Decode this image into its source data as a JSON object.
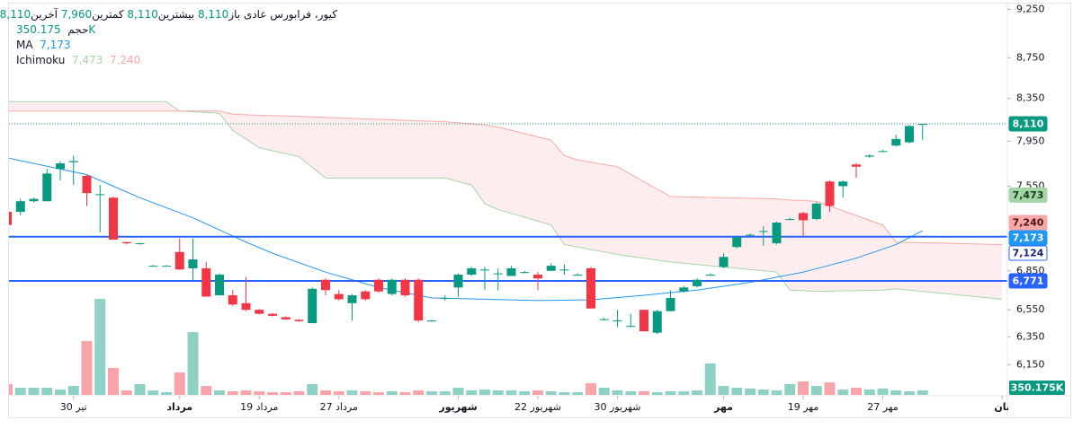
{
  "chart_data": {
    "type": "candlestick",
    "log_scale": true,
    "header": {
      "symbol": "کیور، فرابورس عادی",
      "fields": [
        {
          "name": "باز",
          "value": 8110,
          "value_label": "8,110"
        },
        {
          "name": "بیشترین",
          "value": 8110,
          "value_label": "8,110"
        },
        {
          "name": "کمترین",
          "value": 7960,
          "value_label": "7,960"
        },
        {
          "name": "آخرین",
          "value": 8110,
          "value_label": "8,110"
        }
      ],
      "volume": {
        "name": "حجم",
        "value": 350.175,
        "value_label": "350.175K"
      },
      "ma": {
        "name": "MA",
        "value": 7173,
        "value_label": "7,173"
      },
      "ichimoku": {
        "name": "Ichimoku",
        "values": [
          7473,
          7240
        ],
        "value_labels": [
          "7,473",
          "7,240"
        ]
      }
    },
    "up_color": "#089981",
    "down_color": "#f23645",
    "candles": {
      "open": [
        7330,
        7330,
        7420,
        7420,
        7700,
        7760,
        7640,
        7480,
        7450,
        7080,
        7070,
        6890,
        6890,
        7000,
        6870,
        6870,
        6660,
        6660,
        6600,
        6550,
        6520,
        6495,
        6475,
        6450,
        6780,
        6670,
        6600,
        6690,
        6780,
        6670,
        6780,
        6780,
        6465,
        6640,
        6720,
        6820,
        6860,
        6830,
        6810,
        6840,
        6820,
        6850,
        6860,
        6820,
        6870,
        6480,
        6470,
        6430,
        6550,
        6380,
        6540,
        6690,
        6730,
        6820,
        6880,
        7040,
        7140,
        7170,
        7070,
        7270,
        7320,
        7270,
        7590,
        7550,
        7740,
        7810,
        7860,
        7910,
        7940,
        8110
      ],
      "high": [
        7340,
        7440,
        7450,
        7700,
        7770,
        7820,
        7650,
        7560,
        7460,
        7080,
        7075,
        6895,
        6895,
        7110,
        7110,
        6920,
        6830,
        6700,
        6800,
        6555,
        6525,
        6500,
        6480,
        6720,
        6790,
        6700,
        6670,
        6700,
        6790,
        6790,
        6790,
        6790,
        6475,
        6660,
        6830,
        6880,
        6880,
        6870,
        6890,
        6850,
        6840,
        6910,
        6900,
        6830,
        6880,
        6490,
        6550,
        6520,
        6550,
        6550,
        6700,
        6730,
        6790,
        6830,
        6990,
        7130,
        7150,
        7210,
        7250,
        7280,
        7330,
        7410,
        7600,
        7600,
        7750,
        7830,
        7870,
        8010,
        8100,
        8110
      ],
      "low": [
        7200,
        7300,
        7410,
        7420,
        7600,
        7560,
        7380,
        7160,
        7100,
        7060,
        7060,
        6885,
        6885,
        6860,
        6780,
        6650,
        6660,
        6580,
        6540,
        6515,
        6500,
        6475,
        6460,
        6450,
        6660,
        6620,
        6470,
        6620,
        6680,
        6660,
        6650,
        6460,
        6460,
        6620,
        6650,
        6810,
        6700,
        6700,
        6810,
        6830,
        6700,
        6850,
        6820,
        6810,
        6560,
        6470,
        6420,
        6420,
        6390,
        6370,
        6540,
        6680,
        6720,
        6810,
        6870,
        7030,
        7130,
        7050,
        7060,
        7260,
        7130,
        7260,
        7330,
        7450,
        7620,
        7800,
        7850,
        7900,
        7930,
        7960
      ],
      "close": [
        7220,
        7420,
        7440,
        7660,
        7750,
        7770,
        7490,
        7480,
        7100,
        7070,
        7070,
        6890,
        6890,
        6860,
        6940,
        6650,
        6820,
        6590,
        6550,
        6520,
        6505,
        6478,
        6465,
        6710,
        6700,
        6630,
        6660,
        6630,
        6690,
        6780,
        6660,
        6470,
        6470,
        6640,
        6820,
        6870,
        6860,
        6830,
        6870,
        6840,
        6790,
        6890,
        6860,
        6820,
        6560,
        6480,
        6470,
        6430,
        6390,
        6540,
        6640,
        6720,
        6780,
        6820,
        6960,
        7120,
        7140,
        7170,
        7240,
        7270,
        7260,
        7400,
        7380,
        7590,
        7720,
        7820,
        7860,
        7970,
        8090,
        8110
      ]
    },
    "volume": {
      "values": [
        840,
        560,
        560,
        560,
        420,
        700,
        4200,
        7490,
        2100,
        350,
        840,
        350,
        210,
        1750,
        4900,
        700,
        350,
        280,
        350,
        280,
        210,
        210,
        280,
        840,
        350,
        280,
        350,
        280,
        210,
        280,
        210,
        350,
        280,
        280,
        560,
        350,
        420,
        350,
        350,
        280,
        350,
        280,
        210,
        210,
        910,
        560,
        350,
        280,
        280,
        210,
        280,
        280,
        350,
        2450,
        700,
        560,
        490,
        420,
        350,
        840,
        1050,
        700,
        980,
        420,
        560,
        420,
        490,
        350,
        280,
        350.175
      ],
      "vlim": [
        0,
        7700
      ],
      "last_label": "350.175K"
    },
    "ylim": [
      5940,
      9350
    ],
    "yticks": [
      {
        "value": 9250,
        "label": "9,250"
      },
      {
        "value": 8750,
        "label": "8,750"
      },
      {
        "value": 8350,
        "label": "8,350"
      },
      {
        "value": 7950,
        "label": "7,950"
      },
      {
        "value": 7550,
        "label": "7,550"
      },
      {
        "value": 6850,
        "label": "6,850"
      },
      {
        "value": 6550,
        "label": "6,550"
      },
      {
        "value": 6350,
        "label": "6,350"
      },
      {
        "value": 6150,
        "label": "6,150"
      }
    ],
    "xticks": [
      {
        "value": 5,
        "label": "30 تیر"
      },
      {
        "value": 13,
        "label": "مرداد"
      },
      {
        "value": 19,
        "label": "19 مرداد"
      },
      {
        "value": 25,
        "label": "27 مرداد"
      },
      {
        "value": 34,
        "label": "شهریور"
      },
      {
        "value": 40,
        "label": "22 شهریور"
      },
      {
        "value": 46,
        "label": "30 شهریور"
      },
      {
        "value": 54,
        "label": "مهر"
      },
      {
        "value": 60,
        "label": "19 مهر"
      },
      {
        "value": 66,
        "label": "27 مهر"
      },
      {
        "value": 75,
        "label": "بان"
      }
    ],
    "ma": {
      "color": "#2196f3",
      "x": [
        0,
        6,
        10,
        14,
        18,
        20,
        24,
        28,
        32,
        36,
        40,
        44,
        48,
        52,
        56,
        60,
        64,
        67,
        69
      ],
      "values": [
        7800,
        7650,
        7450,
        7280,
        7080,
        6990,
        6840,
        6720,
        6640,
        6630,
        6620,
        6625,
        6660,
        6700,
        6760,
        6840,
        6950,
        7060,
        7173
      ]
    },
    "ichimoku": {
      "x": [
        0,
        12,
        13,
        16,
        17,
        19,
        22,
        24,
        33,
        35,
        36,
        37,
        41,
        42,
        43,
        46,
        50,
        58,
        59,
        61,
        66,
        67,
        75
      ],
      "span_a": {
        "color": "#a5d6a7",
        "values": [
          8320,
          8320,
          8230,
          8210,
          8050,
          7890,
          7810,
          7620,
          7620,
          7560,
          7400,
          7350,
          7220,
          7060,
          7040,
          6980,
          6920,
          6840,
          6700,
          6690,
          6700,
          6710,
          6630
        ]
      },
      "span_b": {
        "color": "#f7a9a7",
        "values": [
          8230,
          8230,
          8230,
          8230,
          8200,
          8190,
          8180,
          8170,
          8130,
          8110,
          8100,
          8080,
          7960,
          7820,
          7780,
          7720,
          7460,
          7440,
          7430,
          7420,
          7220,
          7080,
          7060
        ]
      }
    },
    "hlines": [
      {
        "value": 7124,
        "color": "#2962ff"
      },
      {
        "value": 6771,
        "color": "#2962ff"
      }
    ],
    "price_labels": [
      {
        "value": 8110,
        "label": "8,110",
        "color": "#089981",
        "text_color": "#ffffff"
      },
      {
        "value": 7473,
        "label": "7,473",
        "color": "#a5d6a7",
        "text_color": "#1b3d1e"
      },
      {
        "value": 7240,
        "label": "7,240",
        "color": "#f7a9a7",
        "text_color": "#4a1414"
      },
      {
        "value": 7173,
        "label": "7,173",
        "color": "#2196f3",
        "text_color": "#ffffff"
      },
      {
        "value": 7124,
        "label": "7,124",
        "color": "#ffffff",
        "text_color": "#1a237e"
      },
      {
        "value": 6771,
        "label": "6,771",
        "color": "#2962ff",
        "text_color": "#ffffff"
      }
    ]
  }
}
